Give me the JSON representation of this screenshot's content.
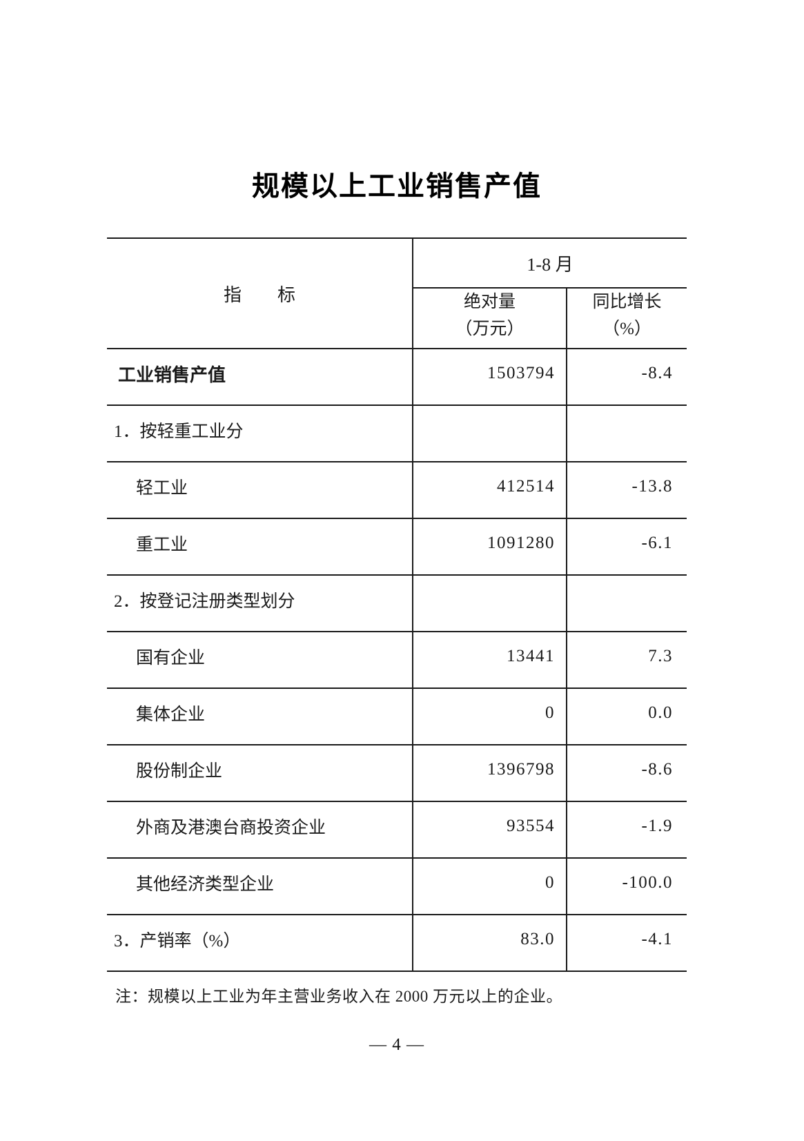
{
  "page": {
    "title": "规模以上工业销售产值",
    "note": "注：规模以上工业为年主营业务收入在 2000 万元以上的企业。",
    "page_number": "— 4 —"
  },
  "table": {
    "header": {
      "indicator": "指　　标",
      "period": "1-8 月",
      "abs": [
        "绝对量",
        "（万元）"
      ],
      "growth": [
        "同比增长",
        "（%）"
      ]
    },
    "rows": [
      {
        "label": "工业销售产值",
        "abs": "1503794",
        "growth": "-8.4"
      },
      {
        "label": "1．按轻重工业分",
        "abs": "",
        "growth": ""
      },
      {
        "label": "轻工业",
        "abs": "412514",
        "growth": "-13.8"
      },
      {
        "label": "重工业",
        "abs": "1091280",
        "growth": "-6.1"
      },
      {
        "label": "2．按登记注册类型划分",
        "abs": "",
        "growth": ""
      },
      {
        "label": "国有企业",
        "abs": "13441",
        "growth": "7.3"
      },
      {
        "label": "集体企业",
        "abs": "0",
        "growth": "0.0"
      },
      {
        "label": "股份制企业",
        "abs": "1396798",
        "growth": "-8.6"
      },
      {
        "label": "外商及港澳台商投资企业",
        "abs": "93554",
        "growth": "-1.9"
      },
      {
        "label": "其他经济类型企业",
        "abs": "0",
        "growth": "-100.0"
      },
      {
        "label": "3．产销率（%）",
        "abs": "83.0",
        "growth": "-4.1"
      }
    ]
  }
}
